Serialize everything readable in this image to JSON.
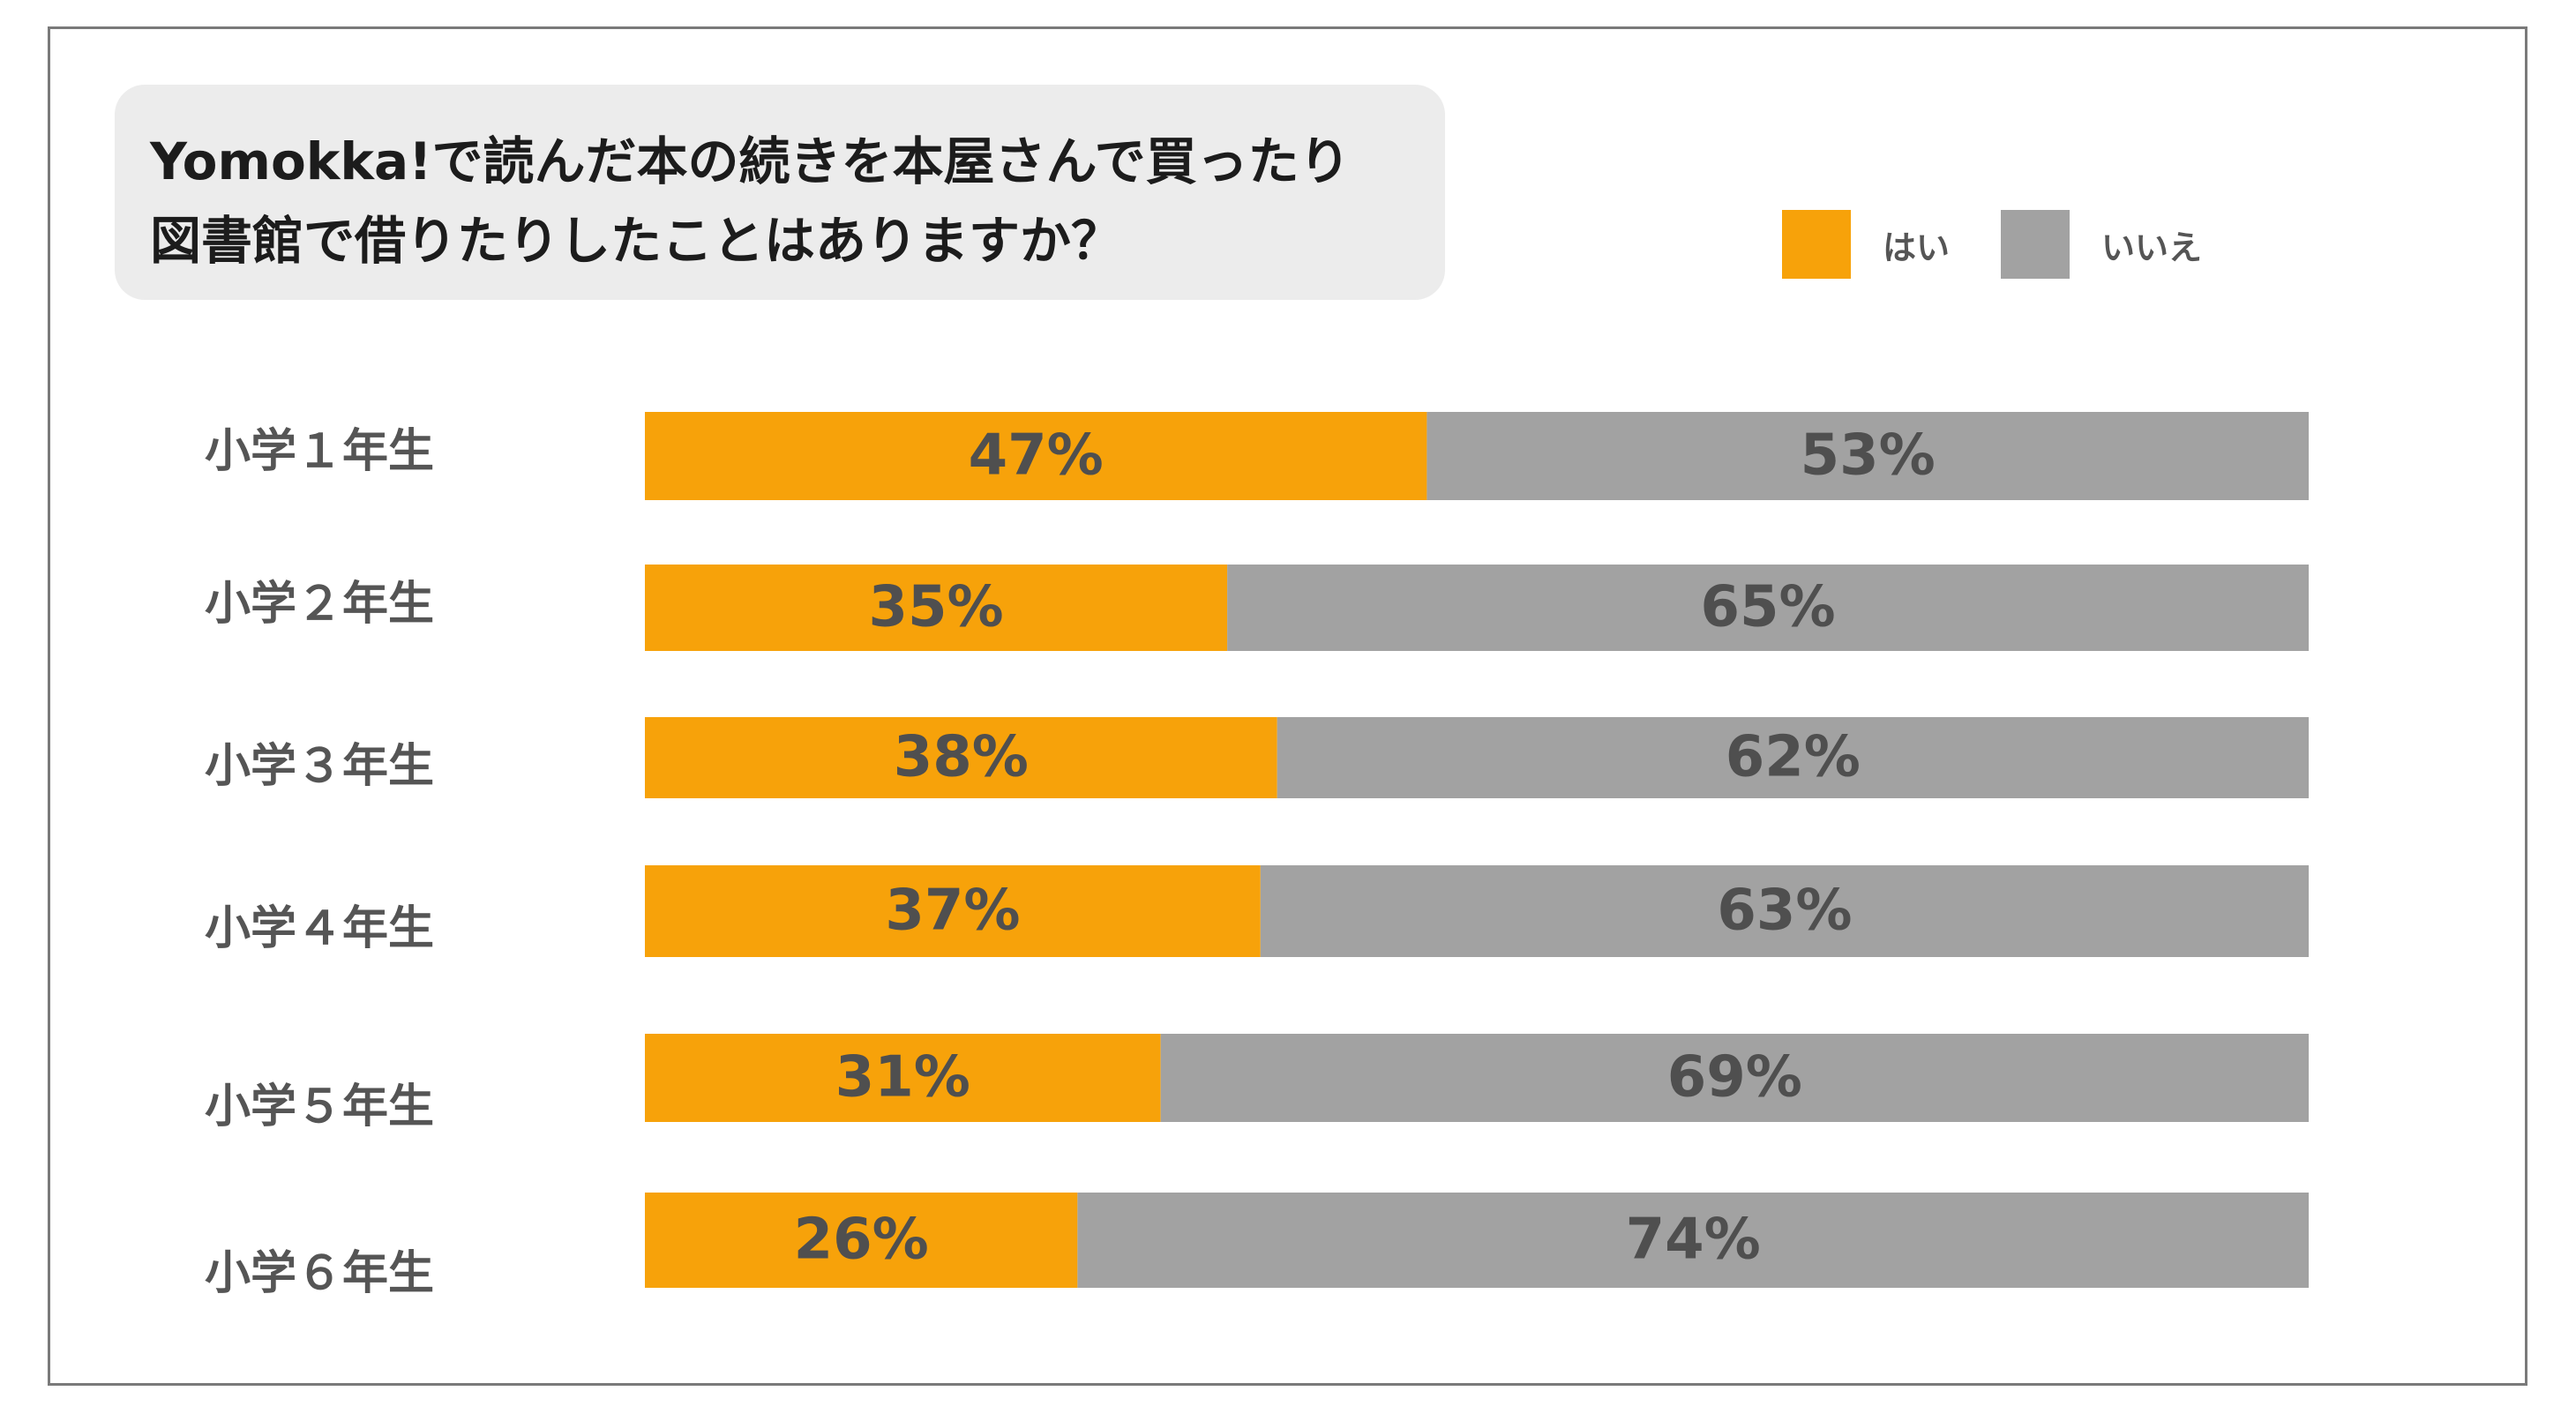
{
  "title_lines": [
    "Yomokka!で読んだ本の続きを本屋さんで買ったり",
    "図書館で借りたりしたことはありますか？"
  ],
  "legend": [
    {
      "label": "はい",
      "color": "#f7a20a"
    },
    {
      "label": "いいえ",
      "color": "#a2a2a2"
    }
  ],
  "chart_data": {
    "type": "bar",
    "orientation": "horizontal",
    "stacked": true,
    "categories": [
      "小学１年生",
      "小学２年生",
      "小学３年生",
      "小学４年生",
      "小学５年生",
      "小学６年生"
    ],
    "series": [
      {
        "name": "はい",
        "color": "#f7a20a",
        "values": [
          47,
          35,
          38,
          37,
          31,
          26
        ],
        "labels": [
          "47%",
          "35%",
          "38%",
          "37%",
          "31%",
          "26%"
        ]
      },
      {
        "name": "いいえ",
        "color": "#a2a2a2",
        "values": [
          53,
          65,
          62,
          63,
          69,
          74
        ],
        "labels": [
          "53%",
          "65%",
          "62%",
          "63%",
          "69%",
          "74%"
        ]
      }
    ],
    "xlim": [
      0,
      100
    ],
    "grid": false,
    "legend_position": "top-right"
  }
}
